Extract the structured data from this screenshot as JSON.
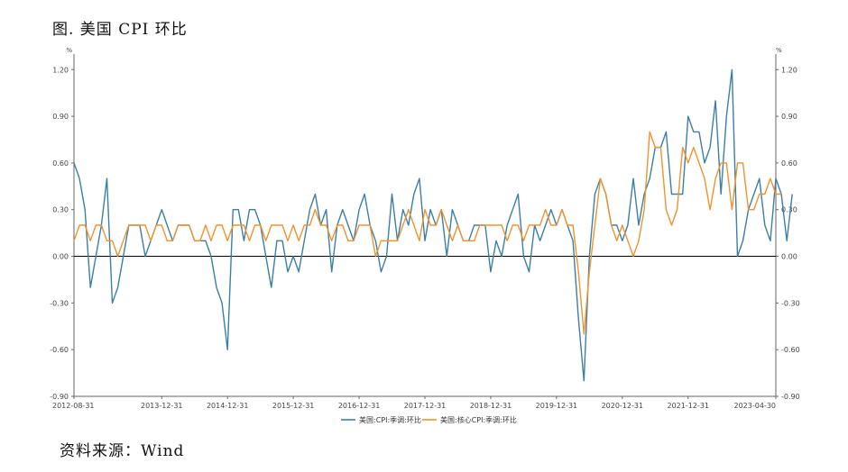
{
  "figure": {
    "title": "图. 美国 CPI 环比",
    "source": "资料来源：Wind"
  },
  "chart_data": {
    "type": "line",
    "left_unit": "%",
    "right_unit": "%",
    "ylim": [
      -0.9,
      1.3
    ],
    "yticks": [
      -0.9,
      -0.6,
      -0.3,
      0.0,
      0.3,
      0.6,
      0.9,
      1.2
    ],
    "ytick_labels": [
      "-0.90",
      "-0.60",
      "-0.30",
      "0.00",
      "0.30",
      "0.60",
      "0.90",
      "1.20"
    ],
    "x_start": "2012-08",
    "x_end": "2023-04",
    "xticks": [
      "2012-08-31",
      "2013-12-31",
      "2014-12-31",
      "2015-12-31",
      "2016-12-31",
      "2017-12-31",
      "2018-12-31",
      "2019-12-31",
      "2020-12-31",
      "2021-12-31",
      "2023-04-30"
    ],
    "grid": false,
    "zero_line": true,
    "legend_position": "bottom-center",
    "colors": {
      "series_1": "#3a7fa6",
      "series_2": "#f0922e"
    },
    "series": [
      {
        "name": "美国:CPI:季调:环比",
        "values": [
          0.6,
          0.5,
          0.3,
          -0.2,
          0.0,
          0.2,
          0.5,
          -0.3,
          -0.2,
          0.0,
          0.2,
          0.2,
          0.2,
          0.0,
          0.1,
          0.2,
          0.3,
          0.2,
          0.1,
          0.2,
          0.2,
          0.2,
          0.1,
          0.1,
          0.1,
          0.0,
          -0.2,
          -0.3,
          -0.6,
          0.3,
          0.3,
          0.1,
          0.3,
          0.3,
          0.2,
          0.0,
          -0.2,
          0.1,
          0.1,
          -0.1,
          0.0,
          -0.1,
          0.1,
          0.3,
          0.4,
          0.2,
          0.3,
          -0.1,
          0.2,
          0.3,
          0.2,
          0.1,
          0.3,
          0.4,
          0.2,
          0.1,
          -0.1,
          0.0,
          0.4,
          0.1,
          0.3,
          0.2,
          0.4,
          0.5,
          0.1,
          0.3,
          0.2,
          0.3,
          0.0,
          0.3,
          0.2,
          0.1,
          0.1,
          0.2,
          0.2,
          0.2,
          -0.1,
          0.1,
          0.0,
          0.2,
          0.3,
          0.4,
          0.0,
          -0.1,
          0.2,
          0.1,
          0.2,
          0.3,
          0.2,
          0.3,
          0.2,
          0.1,
          -0.4,
          -0.8,
          0.0,
          0.4,
          0.5,
          0.4,
          0.2,
          0.2,
          0.1,
          0.2,
          0.5,
          0.2,
          0.4,
          0.5,
          0.7,
          0.7,
          0.8,
          0.4,
          0.4,
          0.4,
          0.9,
          0.8,
          0.8,
          0.6,
          0.7,
          1.0,
          0.4,
          0.9,
          1.2,
          0.0,
          0.1,
          0.3,
          0.4,
          0.5,
          0.2,
          0.1,
          0.5,
          0.4,
          0.1,
          0.4
        ]
      },
      {
        "name": "美国:核心CPI:季调:环比",
        "values": [
          0.1,
          0.2,
          0.2,
          0.1,
          0.2,
          0.2,
          0.1,
          0.1,
          0.0,
          0.1,
          0.2,
          0.2,
          0.2,
          0.2,
          0.1,
          0.2,
          0.2,
          0.1,
          0.1,
          0.2,
          0.2,
          0.2,
          0.1,
          0.1,
          0.2,
          0.1,
          0.2,
          0.2,
          0.1,
          0.2,
          0.2,
          0.2,
          0.1,
          0.2,
          0.2,
          0.1,
          0.2,
          0.2,
          0.2,
          0.1,
          0.2,
          0.1,
          0.2,
          0.2,
          0.3,
          0.2,
          0.2,
          0.1,
          0.2,
          0.2,
          0.1,
          0.1,
          0.2,
          0.2,
          0.2,
          0.0,
          0.1,
          0.1,
          0.1,
          0.1,
          0.2,
          0.3,
          0.2,
          0.1,
          0.3,
          0.2,
          0.2,
          0.3,
          0.2,
          0.1,
          0.2,
          0.1,
          0.1,
          0.1,
          0.2,
          0.2,
          0.2,
          0.2,
          0.2,
          0.1,
          0.2,
          0.2,
          0.1,
          0.2,
          0.2,
          0.2,
          0.3,
          0.2,
          0.2,
          0.3,
          0.2,
          0.2,
          -0.1,
          -0.5,
          -0.1,
          0.2,
          0.5,
          0.4,
          0.2,
          0.1,
          0.2,
          0.1,
          0.0,
          0.1,
          0.3,
          0.8,
          0.7,
          0.7,
          0.3,
          0.2,
          0.3,
          0.7,
          0.6,
          0.7,
          0.6,
          0.5,
          0.3,
          0.5,
          0.6,
          0.6,
          0.3,
          0.6,
          0.6,
          0.3,
          0.3,
          0.4,
          0.4,
          0.5,
          0.4,
          0.4
        ]
      }
    ]
  }
}
